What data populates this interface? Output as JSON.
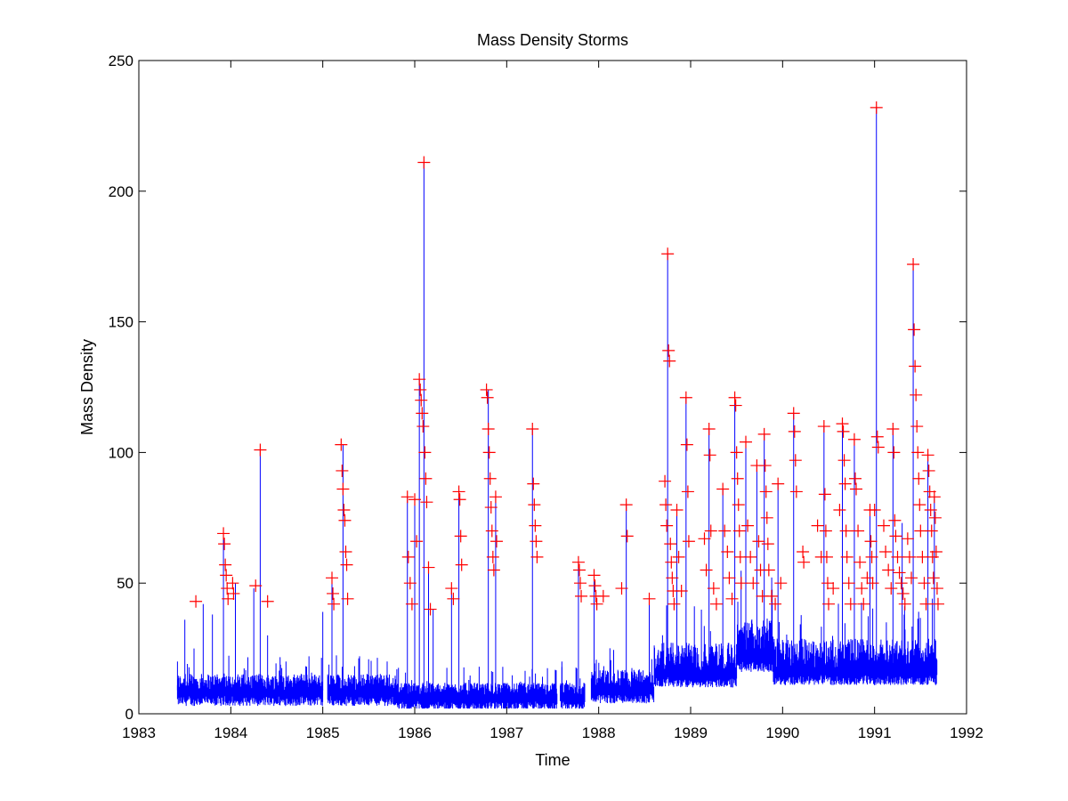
{
  "chart_data": {
    "type": "line",
    "title": "Mass Density Storms",
    "xlabel": "Time",
    "ylabel": "Mass Density",
    "xlim": [
      1983,
      1992
    ],
    "ylim": [
      0,
      250
    ],
    "x_ticks": [
      1983,
      1984,
      1985,
      1986,
      1987,
      1988,
      1989,
      1990,
      1991,
      1992
    ],
    "y_ticks": [
      0,
      50,
      100,
      150,
      200,
      250
    ],
    "grid": false,
    "legend": "none",
    "series": [
      {
        "style": "blue vertical-line time series",
        "color": "#0000ff",
        "segments": [
          [
            1983.42,
            20
          ],
          [
            1983.5,
            36
          ],
          [
            1983.6,
            25
          ],
          [
            1983.7,
            42
          ],
          [
            1983.8,
            38
          ],
          [
            1983.92,
            67
          ],
          [
            1984.05,
            50
          ],
          [
            1984.25,
            48
          ],
          [
            1984.32,
            101
          ],
          [
            1984.4,
            30
          ],
          [
            1984.6,
            20
          ],
          [
            1984.85,
            22
          ],
          [
            1985.0,
            39
          ],
          [
            1985.1,
            52
          ],
          [
            1985.22,
            103
          ],
          [
            1985.4,
            22
          ],
          [
            1985.7,
            20
          ],
          [
            1985.92,
            83
          ],
          [
            1986.0,
            82
          ],
          [
            1986.05,
            128
          ],
          [
            1986.1,
            211
          ],
          [
            1986.15,
            56
          ],
          [
            1986.2,
            40
          ],
          [
            1986.4,
            48
          ],
          [
            1986.48,
            85
          ],
          [
            1986.8,
            124
          ],
          [
            1986.88,
            83
          ],
          [
            1987.28,
            109
          ],
          [
            1987.6,
            20
          ],
          [
            1987.78,
            58
          ],
          [
            1987.95,
            53
          ],
          [
            1988.3,
            80
          ],
          [
            1988.55,
            44
          ],
          [
            1988.75,
            176
          ],
          [
            1988.85,
            78
          ],
          [
            1988.95,
            121
          ],
          [
            1989.2,
            109
          ],
          [
            1989.35,
            86
          ],
          [
            1989.48,
            121
          ],
          [
            1989.6,
            104
          ],
          [
            1989.72,
            95
          ],
          [
            1989.8,
            107
          ],
          [
            1989.95,
            88
          ],
          [
            1990.12,
            115
          ],
          [
            1990.45,
            110
          ],
          [
            1990.65,
            111
          ],
          [
            1990.78,
            105
          ],
          [
            1990.95,
            78
          ],
          [
            1991.02,
            232
          ],
          [
            1991.2,
            109
          ],
          [
            1991.3,
            73
          ],
          [
            1991.42,
            172
          ],
          [
            1991.58,
            99
          ],
          [
            1991.65,
            83
          ]
        ]
      },
      {
        "style": "red plus markers (storm points above threshold)",
        "color": "#ff0000",
        "points": [
          [
            1983.62,
            43
          ],
          [
            1983.92,
            69
          ],
          [
            1983.93,
            65
          ],
          [
            1983.94,
            57
          ],
          [
            1983.95,
            53
          ],
          [
            1983.96,
            48
          ],
          [
            1983.97,
            44
          ],
          [
            1984.02,
            50
          ],
          [
            1984.03,
            46
          ],
          [
            1984.27,
            49
          ],
          [
            1984.32,
            101
          ],
          [
            1984.4,
            43
          ],
          [
            1985.1,
            52
          ],
          [
            1985.11,
            46
          ],
          [
            1985.12,
            42
          ],
          [
            1985.2,
            103
          ],
          [
            1985.21,
            93
          ],
          [
            1985.22,
            86
          ],
          [
            1985.23,
            78
          ],
          [
            1985.24,
            74
          ],
          [
            1985.25,
            62
          ],
          [
            1985.26,
            57
          ],
          [
            1985.27,
            44
          ],
          [
            1985.92,
            83
          ],
          [
            1985.93,
            60
          ],
          [
            1985.95,
            50
          ],
          [
            1985.97,
            42
          ],
          [
            1986.0,
            82
          ],
          [
            1986.02,
            66
          ],
          [
            1986.05,
            128
          ],
          [
            1986.06,
            124
          ],
          [
            1986.07,
            120
          ],
          [
            1986.08,
            115
          ],
          [
            1986.09,
            110
          ],
          [
            1986.1,
            211
          ],
          [
            1986.11,
            100
          ],
          [
            1986.12,
            90
          ],
          [
            1986.13,
            81
          ],
          [
            1986.15,
            56
          ],
          [
            1986.17,
            40
          ],
          [
            1986.4,
            48
          ],
          [
            1986.42,
            44
          ],
          [
            1986.48,
            85
          ],
          [
            1986.49,
            82
          ],
          [
            1986.5,
            68
          ],
          [
            1986.51,
            57
          ],
          [
            1986.78,
            124
          ],
          [
            1986.79,
            121
          ],
          [
            1986.8,
            109
          ],
          [
            1986.81,
            100
          ],
          [
            1986.82,
            90
          ],
          [
            1986.83,
            79
          ],
          [
            1986.84,
            70
          ],
          [
            1986.85,
            60
          ],
          [
            1986.86,
            55
          ],
          [
            1986.88,
            83
          ],
          [
            1986.89,
            66
          ],
          [
            1987.28,
            109
          ],
          [
            1987.29,
            88
          ],
          [
            1987.3,
            80
          ],
          [
            1987.31,
            72
          ],
          [
            1987.32,
            66
          ],
          [
            1987.33,
            60
          ],
          [
            1987.78,
            58
          ],
          [
            1987.79,
            55
          ],
          [
            1987.8,
            50
          ],
          [
            1987.81,
            45
          ],
          [
            1987.95,
            53
          ],
          [
            1987.96,
            49
          ],
          [
            1987.97,
            45
          ],
          [
            1987.98,
            42
          ],
          [
            1988.05,
            45
          ],
          [
            1988.25,
            48
          ],
          [
            1988.3,
            80
          ],
          [
            1988.31,
            68
          ],
          [
            1988.55,
            44
          ],
          [
            1988.72,
            89
          ],
          [
            1988.73,
            80
          ],
          [
            1988.74,
            72
          ],
          [
            1988.75,
            176
          ],
          [
            1988.76,
            139
          ],
          [
            1988.77,
            135
          ],
          [
            1988.78,
            65
          ],
          [
            1988.79,
            58
          ],
          [
            1988.8,
            52
          ],
          [
            1988.81,
            47
          ],
          [
            1988.82,
            42
          ],
          [
            1988.85,
            78
          ],
          [
            1988.87,
            60
          ],
          [
            1988.9,
            47
          ],
          [
            1988.95,
            121
          ],
          [
            1988.96,
            103
          ],
          [
            1988.97,
            85
          ],
          [
            1988.98,
            66
          ],
          [
            1989.15,
            67
          ],
          [
            1989.17,
            55
          ],
          [
            1989.2,
            109
          ],
          [
            1989.21,
            99
          ],
          [
            1989.22,
            70
          ],
          [
            1989.25,
            48
          ],
          [
            1989.28,
            42
          ],
          [
            1989.35,
            86
          ],
          [
            1989.37,
            70
          ],
          [
            1989.4,
            62
          ],
          [
            1989.42,
            52
          ],
          [
            1989.45,
            44
          ],
          [
            1989.48,
            121
          ],
          [
            1989.49,
            118
          ],
          [
            1989.5,
            100
          ],
          [
            1989.51,
            90
          ],
          [
            1989.52,
            80
          ],
          [
            1989.53,
            70
          ],
          [
            1989.54,
            60
          ],
          [
            1989.55,
            50
          ],
          [
            1989.6,
            104
          ],
          [
            1989.62,
            72
          ],
          [
            1989.65,
            60
          ],
          [
            1989.68,
            50
          ],
          [
            1989.72,
            95
          ],
          [
            1989.74,
            66
          ],
          [
            1989.76,
            55
          ],
          [
            1989.78,
            45
          ],
          [
            1989.8,
            107
          ],
          [
            1989.81,
            95
          ],
          [
            1989.82,
            85
          ],
          [
            1989.83,
            75
          ],
          [
            1989.84,
            65
          ],
          [
            1989.85,
            55
          ],
          [
            1989.88,
            45
          ],
          [
            1989.92,
            42
          ],
          [
            1989.95,
            88
          ],
          [
            1989.98,
            50
          ],
          [
            1990.12,
            115
          ],
          [
            1990.13,
            108
          ],
          [
            1990.14,
            97
          ],
          [
            1990.15,
            85
          ],
          [
            1990.22,
            62
          ],
          [
            1990.23,
            58
          ],
          [
            1990.38,
            72
          ],
          [
            1990.42,
            60
          ],
          [
            1990.45,
            110
          ],
          [
            1990.46,
            84
          ],
          [
            1990.47,
            70
          ],
          [
            1990.48,
            60
          ],
          [
            1990.49,
            50
          ],
          [
            1990.5,
            42
          ],
          [
            1990.55,
            48
          ],
          [
            1990.62,
            78
          ],
          [
            1990.65,
            111
          ],
          [
            1990.66,
            108
          ],
          [
            1990.67,
            97
          ],
          [
            1990.68,
            88
          ],
          [
            1990.69,
            70
          ],
          [
            1990.7,
            60
          ],
          [
            1990.72,
            50
          ],
          [
            1990.74,
            42
          ],
          [
            1990.78,
            105
          ],
          [
            1990.79,
            90
          ],
          [
            1990.8,
            86
          ],
          [
            1990.82,
            70
          ],
          [
            1990.84,
            58
          ],
          [
            1990.86,
            48
          ],
          [
            1990.88,
            42
          ],
          [
            1990.92,
            52
          ],
          [
            1990.95,
            78
          ],
          [
            1990.96,
            66
          ],
          [
            1990.97,
            60
          ],
          [
            1990.98,
            50
          ],
          [
            1991.0,
            78
          ],
          [
            1991.02,
            232
          ],
          [
            1991.03,
            106
          ],
          [
            1991.04,
            102
          ],
          [
            1991.1,
            72
          ],
          [
            1991.12,
            62
          ],
          [
            1991.15,
            55
          ],
          [
            1991.18,
            48
          ],
          [
            1991.2,
            109
          ],
          [
            1991.21,
            100
          ],
          [
            1991.22,
            74
          ],
          [
            1991.23,
            68
          ],
          [
            1991.25,
            60
          ],
          [
            1991.27,
            54
          ],
          [
            1991.29,
            50
          ],
          [
            1991.31,
            46
          ],
          [
            1991.33,
            42
          ],
          [
            1991.36,
            67
          ],
          [
            1991.38,
            60
          ],
          [
            1991.4,
            52
          ],
          [
            1991.42,
            172
          ],
          [
            1991.43,
            147
          ],
          [
            1991.44,
            133
          ],
          [
            1991.45,
            122
          ],
          [
            1991.46,
            110
          ],
          [
            1991.47,
            100
          ],
          [
            1991.48,
            90
          ],
          [
            1991.49,
            80
          ],
          [
            1991.5,
            70
          ],
          [
            1991.52,
            60
          ],
          [
            1991.54,
            50
          ],
          [
            1991.56,
            42
          ],
          [
            1991.58,
            99
          ],
          [
            1991.59,
            93
          ],
          [
            1991.6,
            85
          ],
          [
            1991.61,
            78
          ],
          [
            1991.62,
            70
          ],
          [
            1991.63,
            60
          ],
          [
            1991.64,
            52
          ],
          [
            1991.65,
            83
          ],
          [
            1991.66,
            75
          ],
          [
            1991.67,
            62
          ],
          [
            1991.68,
            48
          ],
          [
            1991.69,
            42
          ]
        ]
      }
    ]
  }
}
